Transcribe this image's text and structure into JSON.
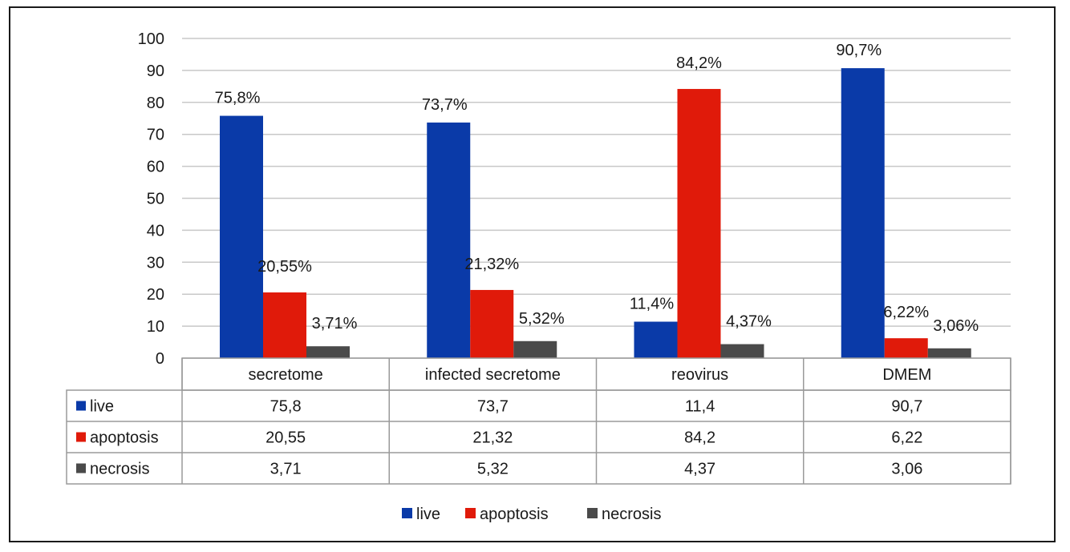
{
  "chart_data": {
    "type": "bar",
    "categories": [
      "secretome",
      "infected secretome",
      "reovirus",
      "DMEM"
    ],
    "series": [
      {
        "name": "live",
        "color": "#0a3aa8",
        "values": [
          75.8,
          73.7,
          11.4,
          90.7
        ],
        "data_labels": [
          "75,8%",
          "73,7%",
          "11,4%",
          "90,7%"
        ],
        "table_values": [
          "75,8",
          "73,7",
          "11,4",
          "90,7"
        ]
      },
      {
        "name": "apoptosis",
        "color": "#e01a0a",
        "values": [
          20.55,
          21.32,
          84.2,
          6.22
        ],
        "data_labels": [
          "20,55%",
          "21,32%",
          "84,2%",
          "6,22%"
        ],
        "table_values": [
          "20,55",
          "21,32",
          "84,2",
          "6,22"
        ]
      },
      {
        "name": "necrosis",
        "color": "#4a4a4a",
        "values": [
          3.71,
          5.32,
          4.37,
          3.06
        ],
        "data_labels": [
          "3,71%",
          "5,32%",
          "4,37%",
          "3,06%"
        ],
        "table_values": [
          "3,71",
          "5,32",
          "4,37",
          "3,06"
        ]
      }
    ],
    "ylim": [
      0,
      100
    ],
    "yticks": [
      "0",
      "10",
      "20",
      "30",
      "40",
      "50",
      "60",
      "70",
      "80",
      "90",
      "100"
    ],
    "grid": true,
    "data_table": true,
    "legend_position": "bottom"
  }
}
